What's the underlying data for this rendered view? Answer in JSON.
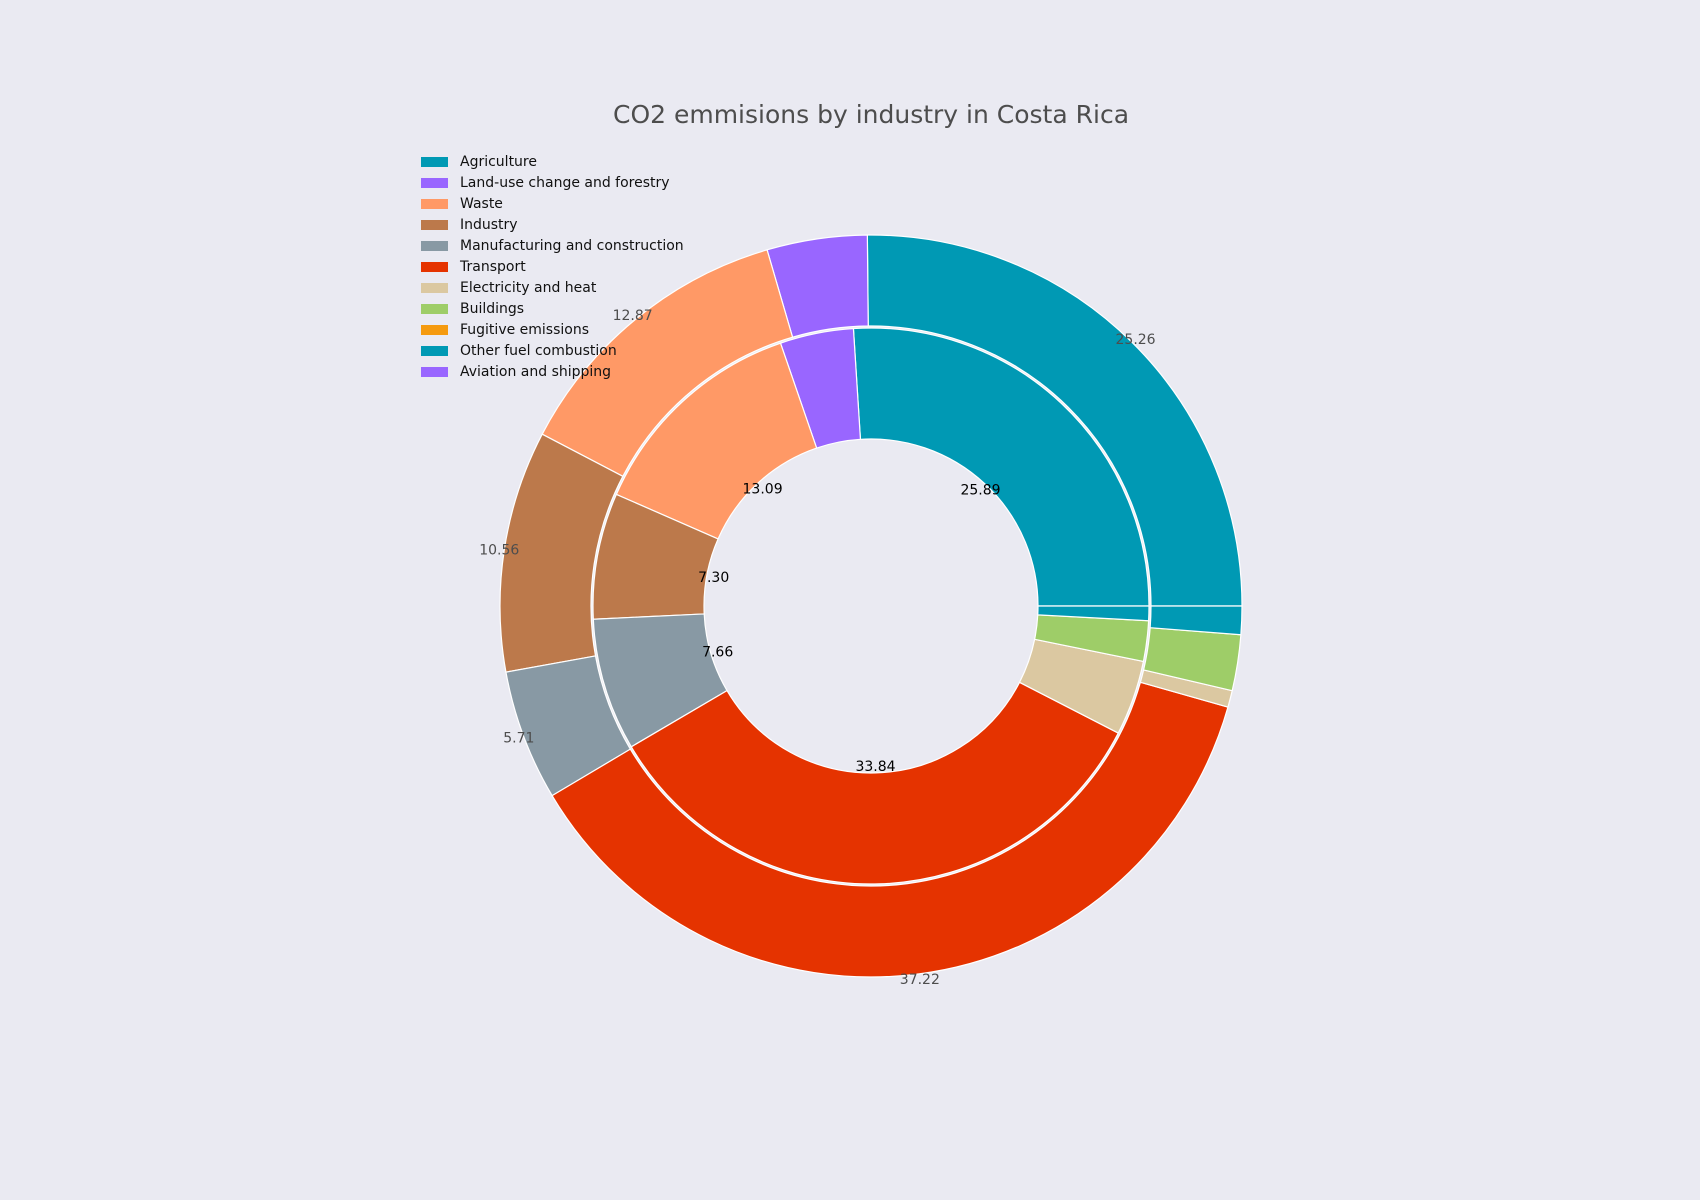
{
  "chart_data": {
    "type": "pie",
    "title": "CO2 emmisions by industry in Costa Rica",
    "legend_position": "top-left",
    "legend": [
      {
        "label": "Agriculture",
        "color": "#0099b4"
      },
      {
        "label": "Land-use change and forestry",
        "color": "#9966ff"
      },
      {
        "label": "Waste",
        "color": "#ff9966"
      },
      {
        "label": "Industry",
        "color": "#bc794b"
      },
      {
        "label": "Manufacturing and construction",
        "color": "#8899a4"
      },
      {
        "label": "Transport",
        "color": "#e53300"
      },
      {
        "label": "Electricity and heat",
        "color": "#dbc8a1"
      },
      {
        "label": "Buildings",
        "color": "#9ecd68"
      },
      {
        "label": "Fugitive emissions",
        "color": "#f59a0f"
      },
      {
        "label": "Other fuel combustion",
        "color": "#0099b4"
      },
      {
        "label": "Aviation and shipping",
        "color": "#9966ff"
      }
    ],
    "series": [
      {
        "ring": "outer",
        "categories": [
          "Agriculture",
          "Land-use change and forestry",
          "Waste",
          "Industry",
          "Manufacturing and construction",
          "Transport",
          "Electricity and heat",
          "Buildings",
          "Fugitive emissions",
          "Other fuel combustion",
          "Aviation and shipping"
        ],
        "values": [
          25.26,
          4.38,
          12.87,
          10.56,
          5.71,
          37.22,
          0.73,
          2.44,
          0.0,
          1.24,
          0.0
        ],
        "labels": [
          "25.26",
          "",
          "12.87",
          "10.56",
          "5.71",
          "37.22",
          "",
          "",
          "",
          "",
          ""
        ]
      },
      {
        "ring": "inner",
        "categories": [
          "Agriculture",
          "Land-use change and forestry",
          "Waste",
          "Industry",
          "Manufacturing and construction",
          "Transport",
          "Electricity and heat",
          "Buildings",
          "Fugitive emissions",
          "Other fuel combustion",
          "Aviation and shipping"
        ],
        "values": [
          25.89,
          4.25,
          13.09,
          7.3,
          7.66,
          33.84,
          4.34,
          2.34,
          0.0,
          0.84,
          0.0
        ],
        "labels": [
          "25.89",
          "",
          "13.09",
          "7.30",
          "7.66",
          "33.84",
          "",
          "",
          "",
          "",
          ""
        ]
      }
    ]
  }
}
